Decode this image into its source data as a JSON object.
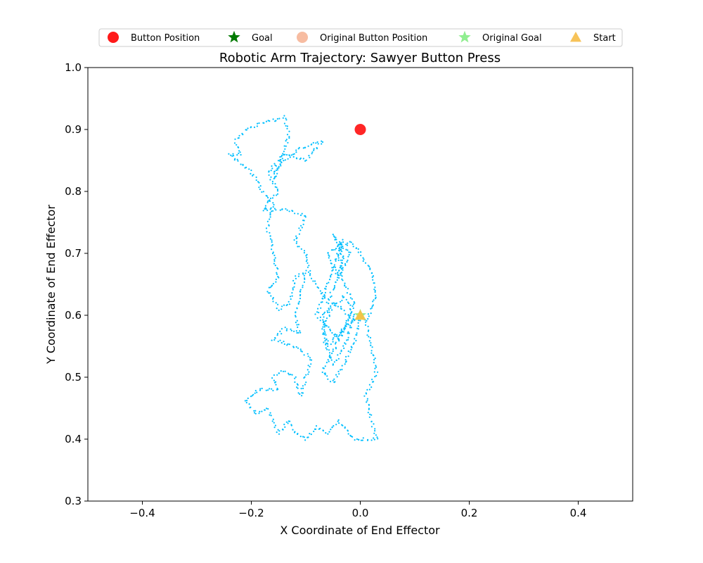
{
  "chart_data": {
    "type": "scatter",
    "title": "Robotic Arm Trajectory: Sawyer Button Press",
    "xlabel": "X Coordinate of End Effector",
    "ylabel": "Y Coordinate of End Effector",
    "xlim": [
      -0.5,
      0.5
    ],
    "ylim": [
      0.3,
      1.0
    ],
    "xticks": [
      -0.4,
      -0.2,
      0.0,
      0.2,
      0.4
    ],
    "xtick_labels": [
      "−0.4",
      "−0.2",
      "0.0",
      "0.2",
      "0.4"
    ],
    "yticks": [
      0.3,
      0.4,
      0.5,
      0.6,
      0.7,
      0.8,
      0.9,
      1.0
    ],
    "ytick_labels": [
      "0.3",
      "0.4",
      "0.5",
      "0.6",
      "0.7",
      "0.8",
      "0.9",
      "1.0"
    ],
    "grid": false,
    "legend_position": "top-center",
    "trajectory_color": "#00bfff",
    "trajectory_path": [
      [
        0.0,
        0.6
      ],
      [
        -0.03,
        0.58
      ],
      [
        -0.06,
        0.55
      ],
      [
        -0.07,
        0.6
      ],
      [
        -0.03,
        0.63
      ],
      [
        -0.01,
        0.6
      ],
      [
        -0.03,
        0.55
      ],
      [
        -0.05,
        0.52
      ],
      [
        -0.07,
        0.57
      ],
      [
        -0.05,
        0.62
      ],
      [
        -0.02,
        0.6
      ],
      [
        -0.04,
        0.56
      ],
      [
        -0.08,
        0.6
      ],
      [
        -0.06,
        0.65
      ],
      [
        -0.05,
        0.68
      ],
      [
        -0.03,
        0.72
      ],
      [
        -0.06,
        0.7
      ],
      [
        -0.04,
        0.66
      ],
      [
        -0.02,
        0.7
      ],
      [
        -0.05,
        0.73
      ],
      [
        -0.03,
        0.69
      ],
      [
        -0.06,
        0.62
      ],
      [
        -0.09,
        0.66
      ],
      [
        -0.1,
        0.7
      ],
      [
        -0.12,
        0.72
      ],
      [
        -0.1,
        0.76
      ],
      [
        -0.13,
        0.77
      ],
      [
        -0.18,
        0.77
      ],
      [
        -0.15,
        0.8
      ],
      [
        -0.17,
        0.83
      ],
      [
        -0.14,
        0.86
      ],
      [
        -0.1,
        0.85
      ],
      [
        -0.07,
        0.88
      ],
      [
        -0.11,
        0.87
      ],
      [
        -0.14,
        0.85
      ],
      [
        -0.16,
        0.82
      ],
      [
        -0.13,
        0.89
      ],
      [
        -0.14,
        0.92
      ],
      [
        -0.18,
        0.91
      ],
      [
        -0.21,
        0.9
      ],
      [
        -0.23,
        0.88
      ],
      [
        -0.22,
        0.86
      ],
      [
        -0.24,
        0.86
      ],
      [
        -0.21,
        0.84
      ],
      [
        -0.19,
        0.82
      ],
      [
        -0.18,
        0.8
      ],
      [
        -0.16,
        0.78
      ],
      [
        -0.17,
        0.74
      ],
      [
        -0.16,
        0.7
      ],
      [
        -0.15,
        0.66
      ],
      [
        -0.17,
        0.64
      ],
      [
        -0.15,
        0.61
      ],
      [
        -0.13,
        0.62
      ],
      [
        -0.12,
        0.66
      ],
      [
        -0.1,
        0.67
      ],
      [
        -0.12,
        0.6
      ],
      [
        -0.11,
        0.57
      ],
      [
        -0.14,
        0.58
      ],
      [
        -0.16,
        0.56
      ],
      [
        -0.12,
        0.55
      ],
      [
        -0.09,
        0.53
      ],
      [
        -0.1,
        0.5
      ],
      [
        -0.11,
        0.47
      ],
      [
        -0.12,
        0.5
      ],
      [
        -0.14,
        0.51
      ],
      [
        -0.16,
        0.5
      ],
      [
        -0.15,
        0.48
      ],
      [
        -0.17,
        0.48
      ],
      [
        -0.19,
        0.48
      ],
      [
        -0.21,
        0.46
      ],
      [
        -0.19,
        0.44
      ],
      [
        -0.17,
        0.45
      ],
      [
        -0.16,
        0.43
      ],
      [
        -0.15,
        0.41
      ],
      [
        -0.13,
        0.43
      ],
      [
        -0.12,
        0.41
      ],
      [
        -0.1,
        0.4
      ],
      [
        -0.08,
        0.42
      ],
      [
        -0.06,
        0.41
      ],
      [
        -0.04,
        0.43
      ],
      [
        -0.02,
        0.41
      ],
      [
        -0.01,
        0.4
      ],
      [
        0.0,
        0.4
      ],
      [
        0.03,
        0.4
      ],
      [
        0.02,
        0.43
      ],
      [
        0.01,
        0.47
      ],
      [
        0.03,
        0.51
      ],
      [
        0.02,
        0.55
      ],
      [
        0.01,
        0.59
      ],
      [
        0.03,
        0.63
      ],
      [
        0.02,
        0.67
      ],
      [
        0.0,
        0.7
      ],
      [
        -0.02,
        0.72
      ],
      [
        -0.04,
        0.7
      ],
      [
        -0.03,
        0.65
      ],
      [
        -0.01,
        0.62
      ],
      [
        -0.03,
        0.58
      ],
      [
        -0.05,
        0.54
      ],
      [
        -0.07,
        0.51
      ],
      [
        -0.05,
        0.49
      ],
      [
        -0.03,
        0.52
      ],
      [
        -0.01,
        0.56
      ],
      [
        0.0,
        0.6
      ]
    ],
    "markers": [
      {
        "name": "Button Position",
        "x": 0.0,
        "y": 0.9,
        "marker": "circle",
        "color": "#ff1a1a"
      },
      {
        "name": "Original Goal",
        "x": 0.0,
        "y": 0.6,
        "marker": "star",
        "color": "#90ee90"
      },
      {
        "name": "Start",
        "x": 0.0,
        "y": 0.6,
        "marker": "triangle",
        "color": "#f6c244"
      }
    ],
    "legend": [
      {
        "name": "Button Position",
        "marker": "circle",
        "color": "#ff1a1a",
        "alpha": 1.0
      },
      {
        "name": "Goal",
        "marker": "star",
        "color": "#007a00",
        "alpha": 1.0
      },
      {
        "name": "Original Button Position",
        "marker": "circle",
        "color": "#f4a582",
        "alpha": 0.75
      },
      {
        "name": "Original Goal",
        "marker": "star",
        "color": "#90ee90",
        "alpha": 1.0
      },
      {
        "name": "Start",
        "marker": "triangle",
        "color": "#f6b83c",
        "alpha": 0.85
      }
    ]
  }
}
